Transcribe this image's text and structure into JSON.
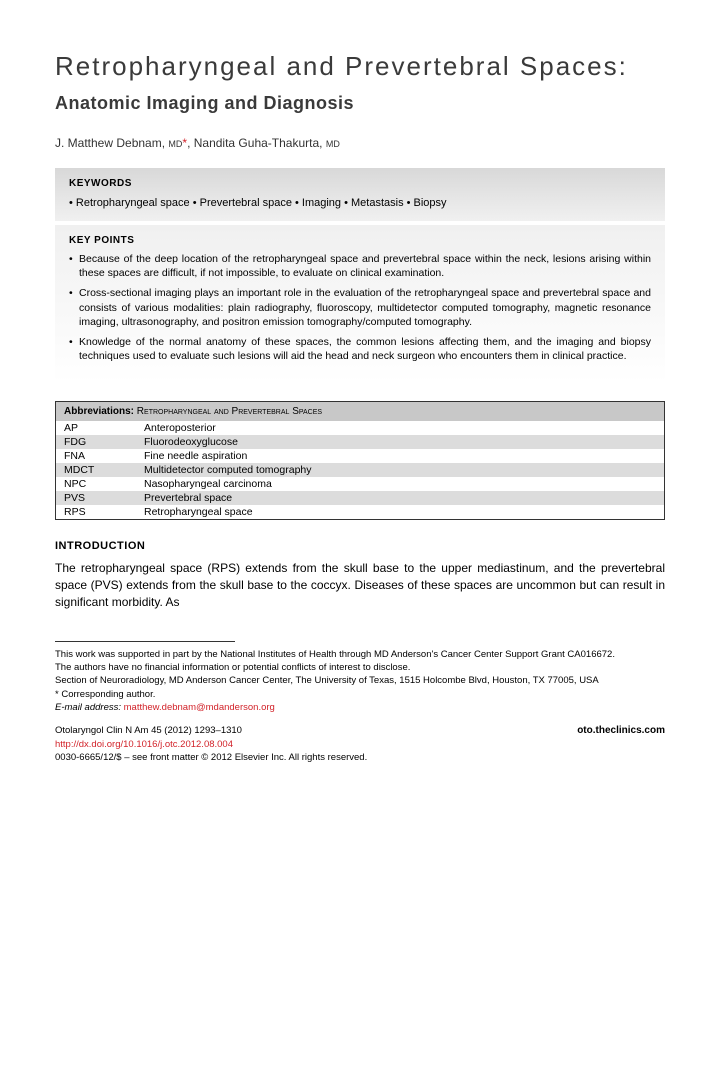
{
  "title_main": "Retropharyngeal and Prevertebral Spaces:",
  "title_sub": "Anatomic Imaging and Diagnosis",
  "authors": [
    {
      "name": "J. Matthew Debnam,",
      "degree": "MD",
      "corresponding": true
    },
    {
      "name": "Nandita Guha-Thakurta,",
      "degree": "MD",
      "corresponding": false
    }
  ],
  "keywords_label": "KEYWORDS",
  "keywords_text": "• Retropharyngeal space • Prevertebral space • Imaging • Metastasis • Biopsy",
  "keypoints_label": "KEY POINTS",
  "keypoints": [
    "Because of the deep location of the retropharyngeal space and prevertebral space within the neck, lesions arising within these spaces are difficult, if not impossible, to evaluate on clinical examination.",
    "Cross-sectional imaging plays an important role in the evaluation of the retropharyngeal space and prevertebral space and consists of various modalities: plain radiography, fluoroscopy, multidetector computed tomography, magnetic resonance imaging, ultrasonography, and positron emission tomography/computed tomography.",
    "Knowledge of the normal anatomy of these spaces, the common lesions affecting them, and the imaging and biopsy techniques used to evaluate such lesions will aid the head and neck surgeon who encounters them in clinical practice."
  ],
  "abbrev_header": "Abbreviations:",
  "abbrev_header_caps": "Retropharyngeal and Prevertebral Spaces",
  "abbreviations": [
    {
      "abbr": "AP",
      "def": "Anteroposterior"
    },
    {
      "abbr": "FDG",
      "def": "Fluorodeoxyglucose"
    },
    {
      "abbr": "FNA",
      "def": "Fine needle aspiration"
    },
    {
      "abbr": "MDCT",
      "def": "Multidetector computed tomography"
    },
    {
      "abbr": "NPC",
      "def": "Nasopharyngeal carcinoma"
    },
    {
      "abbr": "PVS",
      "def": "Prevertebral space"
    },
    {
      "abbr": "RPS",
      "def": "Retropharyngeal space"
    }
  ],
  "intro_heading": "INTRODUCTION",
  "intro_text": "The retropharyngeal space (RPS) extends from the skull base to the upper mediastinum, and the prevertebral space (PVS) extends from the skull base to the coccyx. Diseases of these spaces are uncommon but can result in significant morbidity. As",
  "footer": {
    "funding": "This work was supported in part by the National Institutes of Health through MD Anderson's Cancer Center Support Grant CA016672.",
    "conflicts": "The authors have no financial information or potential conflicts of interest to disclose.",
    "affiliation": "Section of Neuroradiology, MD Anderson Cancer Center, The University of Texas, 1515 Holcombe Blvd, Houston, TX 77005, USA",
    "corresponding": "* Corresponding author.",
    "email_label": "E-mail address:",
    "email": "matthew.debnam@mdanderson.org",
    "journal": "Otolaryngol Clin N Am 45 (2012) 1293–1310",
    "doi": "http://dx.doi.org/10.1016/j.otc.2012.08.004",
    "website": "oto.theclinics.com",
    "copyright": "0030-6665/12/$ – see front matter © 2012 Elsevier Inc. All rights reserved."
  },
  "colors": {
    "text": "#000000",
    "heading": "#3a3a3a",
    "accent": "#d2232a",
    "gradient_top": "#d8d8d8",
    "gradient_bottom": "#ffffff",
    "row_alt": "#dcdcdc",
    "abbrev_header_bg": "#c8c8c8"
  },
  "typography": {
    "title_size": 26,
    "subtitle_size": 18,
    "body_size": 12,
    "small_size": 10.5,
    "footer_size": 9.5
  }
}
